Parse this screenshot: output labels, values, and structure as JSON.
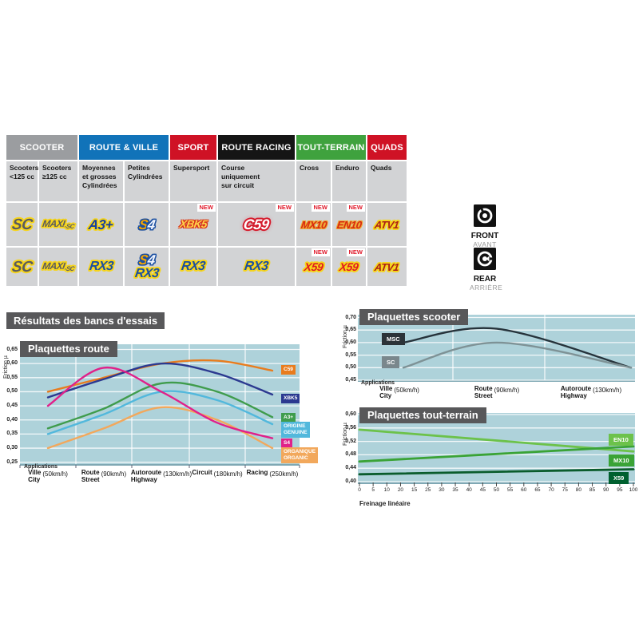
{
  "results_title": "Résultats des bancs d'essais",
  "table": {
    "new_label": "NEW",
    "groups": [
      {
        "label": "SCOOTER",
        "color": "#9b9da0",
        "span": 2
      },
      {
        "label": "ROUTE & VILLE",
        "color": "#1173b9",
        "span": 2
      },
      {
        "label": "SPORT",
        "color": "#cf1225",
        "span": 1
      },
      {
        "label": "ROUTE RACING",
        "color": "#151515",
        "span": 1
      },
      {
        "label": "TOUT-TERRAIN",
        "color": "#3fa23e",
        "span": 2
      },
      {
        "label": "QUADS",
        "color": "#cf1225",
        "span": 1
      }
    ],
    "subheaders": [
      "Scooters\n<125 cc",
      "Scooters\n≥125 cc",
      "Moyennes\net grosses\nCylindrées",
      "Petites\nCylindrées",
      "Supersport",
      "Course\nuniquement\nsur circuit",
      "Cross",
      "Enduro",
      "Quads"
    ],
    "front": [
      {
        "logos": [
          {
            "text": "SC",
            "style": "sc"
          }
        ]
      },
      {
        "logos": [
          {
            "text": "MAXI-SC",
            "style": "maxisc"
          }
        ]
      },
      {
        "logos": [
          {
            "text": "A3+",
            "style": "a3"
          }
        ]
      },
      {
        "logos": [
          {
            "text": "S4",
            "style": "s4"
          }
        ]
      },
      {
        "new": true,
        "logos": [
          {
            "text": "XBK5",
            "style": "xbk5"
          }
        ]
      },
      {
        "new": true,
        "logos": [
          {
            "text": "C59",
            "style": "c59"
          }
        ]
      },
      {
        "new": true,
        "logos": [
          {
            "text": "MX10",
            "style": "mx10"
          }
        ]
      },
      {
        "new": true,
        "logos": [
          {
            "text": "EN10",
            "style": "en10"
          }
        ]
      },
      {
        "logos": [
          {
            "text": "ATV1",
            "style": "atv1"
          }
        ]
      }
    ],
    "rear": [
      {
        "logos": [
          {
            "text": "SC",
            "style": "sc"
          }
        ]
      },
      {
        "logos": [
          {
            "text": "MAXI-SC",
            "style": "maxisc"
          }
        ]
      },
      {
        "logos": [
          {
            "text": "RX3",
            "style": "rx3"
          }
        ]
      },
      {
        "logos": [
          {
            "text": "S4",
            "style": "s4"
          },
          {
            "text": "RX3",
            "style": "rx3"
          }
        ]
      },
      {
        "logos": [
          {
            "text": "RX3",
            "style": "rx3"
          }
        ]
      },
      {
        "logos": [
          {
            "text": "RX3",
            "style": "rx3"
          }
        ]
      },
      {
        "new": true,
        "logos": [
          {
            "text": "X59",
            "style": "x59"
          }
        ]
      },
      {
        "new": true,
        "logos": [
          {
            "text": "X59",
            "style": "x59"
          }
        ]
      },
      {
        "logos": [
          {
            "text": "ATV1",
            "style": "atv1"
          }
        ]
      }
    ],
    "position_labels": {
      "front_en": "FRONT",
      "front_fr": "AVANT",
      "rear_en": "REAR",
      "rear_fr": "ARRIÈRE"
    }
  },
  "chart_data": [
    {
      "id": "route",
      "type": "line",
      "title": "Plaquettes route",
      "ylabel": "Friction µ",
      "axis_note": "Applications",
      "ymax": 0.65,
      "ymin": 0.25,
      "ystep": 0.05,
      "yticks": [
        "0,65",
        "0,60",
        "0,55",
        "0,50",
        "0,45",
        "0,40",
        "0,35",
        "0,30",
        "0,25"
      ],
      "categories": [
        {
          "lines": [
            "Ville",
            "City"
          ],
          "speed": "(50km/h)"
        },
        {
          "lines": [
            "Route",
            "Street"
          ],
          "speed": "(90km/h)"
        },
        {
          "lines": [
            "Autoroute",
            "Highway"
          ],
          "speed": "(130km/h)"
        },
        {
          "lines": [
            "Circuit"
          ],
          "speed": "(180km/h)"
        },
        {
          "lines": [
            "Racing"
          ],
          "speed": "(250km/h)"
        }
      ],
      "series": [
        {
          "name": "C59",
          "color": "#e87c1e",
          "values": [
            0.5,
            0.55,
            0.6,
            0.61,
            0.575
          ]
        },
        {
          "name": "XBK5",
          "color": "#2b3990",
          "values": [
            0.48,
            0.545,
            0.6,
            0.565,
            0.49
          ]
        },
        {
          "name": "A3+",
          "color": "#3f9c4c",
          "values": [
            0.37,
            0.44,
            0.53,
            0.5,
            0.41
          ]
        },
        {
          "name": "ORIGINE GENUINE",
          "color": "#52b8dc",
          "values": [
            0.35,
            0.42,
            0.5,
            0.47,
            0.385
          ]
        },
        {
          "name": "S4",
          "color": "#e0218a",
          "values": [
            0.45,
            0.585,
            0.5,
            0.39,
            0.335
          ]
        },
        {
          "name": "ORGANIQUE ORGANIC",
          "color": "#f2a85c",
          "values": [
            0.3,
            0.37,
            0.445,
            0.4,
            0.3
          ]
        }
      ],
      "legend": [
        {
          "label": "C59",
          "color": "#e87c1e"
        },
        {
          "label": "XBK5",
          "color": "#2b3990"
        },
        {
          "label": "A3+",
          "color": "#3f9c4c"
        },
        {
          "label": "ORIGINE\nGENUINE",
          "color": "#52b8dc"
        },
        {
          "label": "S4",
          "color": "#e0218a"
        },
        {
          "label": "ORGANIQUE\nORGANIC",
          "color": "#f2a85c"
        }
      ]
    },
    {
      "id": "scooter",
      "type": "line",
      "title": "Plaquettes scooter",
      "ylabel": "Friction µ",
      "axis_note": "Applications",
      "ymax": 0.7,
      "ymin": 0.45,
      "ystep": 0.05,
      "yticks": [
        "0,70",
        "0,65",
        "0,60",
        "0,55",
        "0,50",
        "0,45"
      ],
      "categories": [
        {
          "lines": [
            "Ville",
            "City"
          ],
          "speed": "(50km/h)"
        },
        {
          "lines": [
            "Route",
            "Street"
          ],
          "speed": "(90km/h)"
        },
        {
          "lines": [
            "Autoroute",
            "Highway"
          ],
          "speed": "(130km/h)"
        }
      ],
      "series": [
        {
          "name": "MSC",
          "color": "#26333b",
          "values": [
            0.6,
            0.655,
            0.5
          ]
        },
        {
          "name": "SC",
          "color": "#7e9296",
          "values": [
            0.5,
            0.6,
            0.5
          ]
        }
      ],
      "legend": [
        {
          "label": "MSC",
          "color": "#2c3338"
        },
        {
          "label": "SC",
          "color": "#7a878c"
        }
      ]
    },
    {
      "id": "tt",
      "type": "line",
      "title": "Plaquettes tout-terrain",
      "ylabel": "Friction µ",
      "xlabel": "Freinage linéaire",
      "ymax": 0.6,
      "ymin": 0.4,
      "ystep": 0.04,
      "yticks": [
        "0,60",
        "0,56",
        "0,52",
        "0,48",
        "0,44",
        "0,40"
      ],
      "xticks": [
        "0",
        "5",
        "10",
        "20",
        "15",
        "25",
        "30",
        "35",
        "40",
        "45",
        "50",
        "55",
        "60",
        "65",
        "70",
        "75",
        "80",
        "85",
        "90",
        "95",
        "100"
      ],
      "series": [
        {
          "name": "EN10",
          "color": "#6cc24a",
          "values": [
            0.555,
            0.49
          ]
        },
        {
          "name": "MX10",
          "color": "#3aa336",
          "values": [
            0.46,
            0.505
          ]
        },
        {
          "name": "X59",
          "color": "#0a5c2c",
          "values": [
            0.422,
            0.437
          ]
        }
      ],
      "legend": [
        {
          "label": "EN10",
          "color": "#6cc24a"
        },
        {
          "label": "MX10",
          "color": "#3aa336"
        },
        {
          "label": "X59",
          "color": "#00602f"
        }
      ]
    }
  ]
}
